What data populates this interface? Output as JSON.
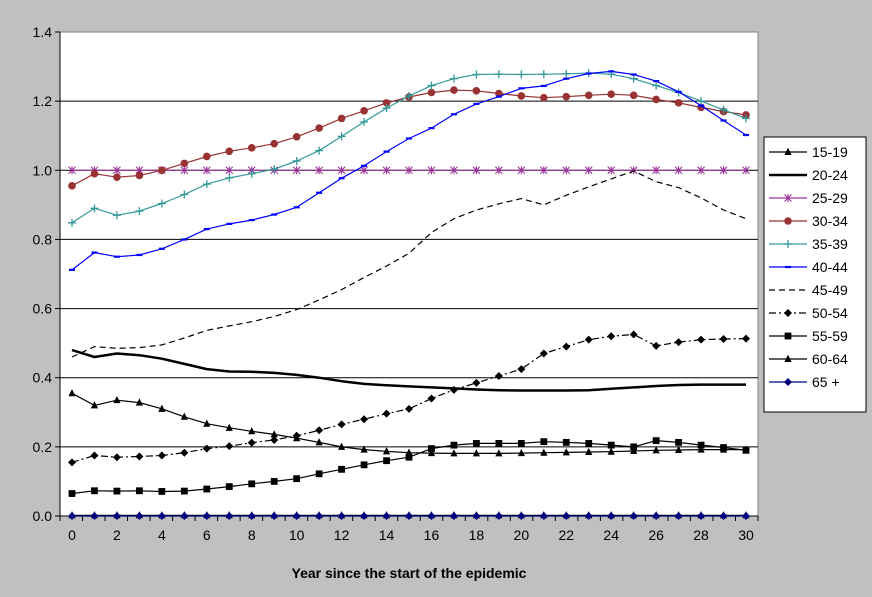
{
  "chart_data": {
    "type": "line",
    "title": "",
    "xlabel": "Year since the start of the epidemic",
    "ylabel": "",
    "xlim": [
      0,
      30
    ],
    "ylim": [
      0,
      1.4
    ],
    "xticks": [
      "0",
      "2",
      "4",
      "6",
      "8",
      "10",
      "12",
      "14",
      "16",
      "18",
      "20",
      "22",
      "24",
      "26",
      "28",
      "30"
    ],
    "yticks": [
      "0.0",
      "0.2",
      "0.4",
      "0.6",
      "0.8",
      "1.0",
      "1.2",
      "1.4"
    ],
    "grid": "horizontal",
    "legend_position": "right",
    "x": [
      0,
      1,
      2,
      3,
      4,
      5,
      6,
      7,
      8,
      9,
      10,
      11,
      12,
      13,
      14,
      15,
      16,
      17,
      18,
      19,
      20,
      21,
      22,
      23,
      24,
      25,
      26,
      27,
      28,
      29,
      30
    ],
    "series": [
      {
        "name": "15-19",
        "color": "#000000",
        "marker": "triangle",
        "dash": "solid",
        "width": 1.2,
        "values": [
          0.002,
          0.002,
          0.002,
          0.002,
          0.002,
          0.002,
          0.002,
          0.002,
          0.002,
          0.002,
          0.002,
          0.002,
          0.002,
          0.002,
          0.002,
          0.002,
          0.002,
          0.002,
          0.002,
          0.002,
          0.002,
          0.002,
          0.002,
          0.002,
          0.002,
          0.002,
          0.002,
          0.002,
          0.002,
          0.002,
          0.002
        ]
      },
      {
        "name": "20-24",
        "color": "#000000",
        "marker": "none",
        "dash": "solid",
        "width": 2.5,
        "values": [
          0.48,
          0.46,
          0.47,
          0.465,
          0.455,
          0.44,
          0.425,
          0.418,
          0.417,
          0.414,
          0.408,
          0.4,
          0.39,
          0.382,
          0.378,
          0.375,
          0.372,
          0.369,
          0.366,
          0.364,
          0.363,
          0.363,
          0.363,
          0.364,
          0.368,
          0.372,
          0.376,
          0.379,
          0.38,
          0.38,
          0.38
        ]
      },
      {
        "name": "25-29",
        "color": "#993399",
        "marker": "star",
        "dash": "solid",
        "width": 1.2,
        "values": [
          1.0,
          1.0,
          1.0,
          1.0,
          1.0,
          1.0,
          1.0,
          1.0,
          1.0,
          1.0,
          1.0,
          1.0,
          1.0,
          1.0,
          1.0,
          1.0,
          1.0,
          1.0,
          1.0,
          1.0,
          1.0,
          1.0,
          1.0,
          1.0,
          1.0,
          1.0,
          1.0,
          1.0,
          1.0,
          1.0,
          1.0
        ]
      },
      {
        "name": "30-34",
        "color": "#993333",
        "marker": "circle",
        "dash": "solid",
        "width": 1.2,
        "values": [
          0.955,
          0.99,
          0.98,
          0.985,
          1.0,
          1.02,
          1.04,
          1.055,
          1.065,
          1.077,
          1.097,
          1.122,
          1.15,
          1.172,
          1.195,
          1.212,
          1.225,
          1.232,
          1.23,
          1.222,
          1.215,
          1.21,
          1.213,
          1.217,
          1.22,
          1.217,
          1.205,
          1.195,
          1.182,
          1.17,
          1.16
        ]
      },
      {
        "name": "35-39",
        "color": "#339999",
        "marker": "plus",
        "dash": "solid",
        "width": 1.2,
        "values": [
          0.848,
          0.89,
          0.87,
          0.882,
          0.904,
          0.93,
          0.96,
          0.978,
          0.99,
          1.003,
          1.027,
          1.057,
          1.098,
          1.14,
          1.18,
          1.215,
          1.245,
          1.265,
          1.277,
          1.278,
          1.277,
          1.278,
          1.279,
          1.281,
          1.278,
          1.265,
          1.245,
          1.225,
          1.2,
          1.175,
          1.15
        ]
      },
      {
        "name": "40-44",
        "color": "#0000ff",
        "marker": "dash",
        "dash": "solid",
        "width": 1.2,
        "values": [
          0.712,
          0.762,
          0.75,
          0.755,
          0.773,
          0.8,
          0.83,
          0.845,
          0.856,
          0.872,
          0.893,
          0.935,
          0.977,
          1.013,
          1.054,
          1.092,
          1.122,
          1.162,
          1.192,
          1.213,
          1.237,
          1.244,
          1.265,
          1.28,
          1.286,
          1.277,
          1.258,
          1.227,
          1.187,
          1.144,
          1.102
        ]
      },
      {
        "name": "45-49",
        "color": "#000000",
        "marker": "none",
        "dash": "6,4",
        "width": 1.2,
        "values": [
          0.46,
          0.49,
          0.485,
          0.487,
          0.495,
          0.515,
          0.537,
          0.55,
          0.562,
          0.577,
          0.597,
          0.625,
          0.655,
          0.69,
          0.723,
          0.76,
          0.82,
          0.86,
          0.885,
          0.903,
          0.918,
          0.9,
          0.928,
          0.952,
          0.975,
          0.998,
          0.967,
          0.95,
          0.92,
          0.885,
          0.86
        ]
      },
      {
        "name": "50-54",
        "color": "#000000",
        "marker": "diamond",
        "dash": "7,3,2,3",
        "width": 1.2,
        "values": [
          0.155,
          0.175,
          0.17,
          0.172,
          0.175,
          0.183,
          0.195,
          0.202,
          0.212,
          0.22,
          0.232,
          0.248,
          0.265,
          0.28,
          0.296,
          0.31,
          0.34,
          0.365,
          0.385,
          0.405,
          0.425,
          0.47,
          0.49,
          0.51,
          0.52,
          0.525,
          0.492,
          0.503,
          0.51,
          0.512,
          0.513
        ]
      },
      {
        "name": "55-59",
        "color": "#000000",
        "marker": "square",
        "dash": "solid",
        "width": 1.2,
        "values": [
          0.065,
          0.073,
          0.072,
          0.073,
          0.071,
          0.072,
          0.078,
          0.085,
          0.093,
          0.1,
          0.108,
          0.122,
          0.135,
          0.148,
          0.16,
          0.17,
          0.195,
          0.205,
          0.21,
          0.21,
          0.21,
          0.215,
          0.213,
          0.21,
          0.205,
          0.2,
          0.218,
          0.213,
          0.205,
          0.198,
          0.19
        ]
      },
      {
        "name": "60-64",
        "color": "#000000",
        "marker": "triangle",
        "dash": "solid",
        "width": 1.2,
        "values": [
          0.355,
          0.32,
          0.335,
          0.328,
          0.31,
          0.287,
          0.267,
          0.255,
          0.245,
          0.236,
          0.225,
          0.213,
          0.2,
          0.192,
          0.187,
          0.183,
          0.182,
          0.181,
          0.181,
          0.181,
          0.182,
          0.183,
          0.184,
          0.185,
          0.186,
          0.188,
          0.19,
          0.191,
          0.192,
          0.192,
          0.192
        ]
      },
      {
        "name": "65 +",
        "color": "#000080",
        "marker": "diamond",
        "dash": "solid",
        "width": 1.2,
        "values": [
          0.0,
          0.0,
          0.0,
          0.0,
          0.0,
          0.0,
          0.0,
          0.0,
          0.0,
          0.0,
          0.0,
          0.0,
          0.0,
          0.0,
          0.0,
          0.0,
          0.0,
          0.0,
          0.0,
          0.0,
          0.0,
          0.0,
          0.0,
          0.0,
          0.0,
          0.0,
          0.0,
          0.0,
          0.0,
          0.0,
          0.0
        ]
      }
    ]
  }
}
